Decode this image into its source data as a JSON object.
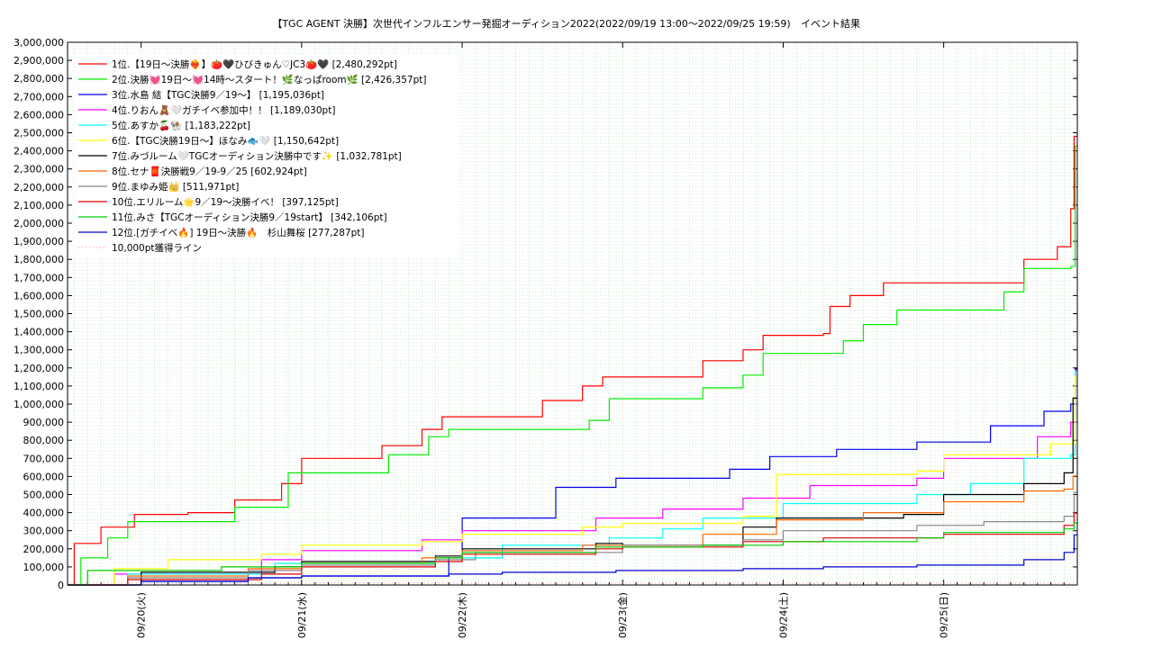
{
  "chart_data": {
    "type": "line",
    "title": "【TGC AGENT 決勝】次世代インフルエンサー発掘オーディション2022(2022/09/19 13:00〜2022/09/25 19:59)",
    "subtitle": "イベント結果",
    "ylim": [
      0,
      3000000
    ],
    "y_ticks": [
      "0",
      "100,000",
      "200,000",
      "300,000",
      "400,000",
      "500,000",
      "600,000",
      "700,000",
      "800,000",
      "900,000",
      "1,000,000",
      "1,100,000",
      "1,200,000",
      "1,300,000",
      "1,400,000",
      "1,500,000",
      "1,600,000",
      "1,700,000",
      "1,800,000",
      "1,900,000",
      "2,000,000",
      "2,100,000",
      "2,200,000",
      "2,300,000",
      "2,400,000",
      "2,500,000",
      "2,600,000",
      "2,700,000",
      "2,800,000",
      "2,900,000",
      "3,000,000"
    ],
    "xlim": [
      "2022-09-19 13:00",
      "2022-09-25 19:59"
    ],
    "x_ticks": [
      "09/20(火)",
      "09/21(水)",
      "09/22(木)",
      "09/23(金)",
      "09/24(土)",
      "09/25(日)"
    ],
    "grid": true,
    "legend_position": "top-left",
    "series": [
      {
        "name": "1位.【19日〜決勝❤️‍🔥】🍅🖤ひびきゅん♡JC3🍅🖤 [2,480,292pt]",
        "color": "#ff0000",
        "points": [
          [
            "2022-09-19 13:00",
            0
          ],
          [
            "2022-09-19 14:00",
            230000
          ],
          [
            "2022-09-19 18:00",
            320000
          ],
          [
            "2022-09-19 23:00",
            390000
          ],
          [
            "2022-09-20 07:00",
            400000
          ],
          [
            "2022-09-20 14:00",
            470000
          ],
          [
            "2022-09-20 21:00",
            560000
          ],
          [
            "2022-09-21 00:00",
            700000
          ],
          [
            "2022-09-21 12:00",
            770000
          ],
          [
            "2022-09-21 18:00",
            860000
          ],
          [
            "2022-09-21 21:00",
            930000
          ],
          [
            "2022-09-22 12:00",
            1020000
          ],
          [
            "2022-09-22 18:00",
            1100000
          ],
          [
            "2022-09-22 21:00",
            1150000
          ],
          [
            "2022-09-23 12:00",
            1240000
          ],
          [
            "2022-09-23 18:00",
            1300000
          ],
          [
            "2022-09-23 21:00",
            1380000
          ],
          [
            "2022-09-24 06:00",
            1390000
          ],
          [
            "2022-09-24 07:00",
            1540000
          ],
          [
            "2022-09-24 10:00",
            1600000
          ],
          [
            "2022-09-24 15:00",
            1670000
          ],
          [
            "2022-09-25 12:00",
            1800000
          ],
          [
            "2022-09-25 17:00",
            1870000
          ],
          [
            "2022-09-25 19:00",
            2080000
          ],
          [
            "2022-09-25 19:30",
            2480292
          ]
        ]
      },
      {
        "name": "2位.決勝💓19日〜💓14時〜スタート！🌿なっぱroom🌿 [2,426,357pt]",
        "color": "#00ee00",
        "points": [
          [
            "2022-09-19 13:00",
            0
          ],
          [
            "2022-09-19 15:00",
            150000
          ],
          [
            "2022-09-19 19:00",
            260000
          ],
          [
            "2022-09-19 22:00",
            350000
          ],
          [
            "2022-09-20 14:00",
            430000
          ],
          [
            "2022-09-20 22:00",
            620000
          ],
          [
            "2022-09-21 13:00",
            720000
          ],
          [
            "2022-09-21 19:00",
            820000
          ],
          [
            "2022-09-21 22:00",
            860000
          ],
          [
            "2022-09-22 19:00",
            910000
          ],
          [
            "2022-09-22 22:00",
            1030000
          ],
          [
            "2022-09-23 12:00",
            1090000
          ],
          [
            "2022-09-23 18:00",
            1160000
          ],
          [
            "2022-09-23 21:00",
            1280000
          ],
          [
            "2022-09-24 09:00",
            1350000
          ],
          [
            "2022-09-24 12:00",
            1440000
          ],
          [
            "2022-09-24 17:00",
            1520000
          ],
          [
            "2022-09-25 09:00",
            1620000
          ],
          [
            "2022-09-25 12:00",
            1750000
          ],
          [
            "2022-09-25 19:00",
            1760000
          ],
          [
            "2022-09-25 19:40",
            2426357
          ]
        ]
      },
      {
        "name": "3位.水島 結【TGC決勝9／19〜】 [1,195,036pt]",
        "color": "#0000ee",
        "points": [
          [
            "2022-09-19 13:00",
            0
          ],
          [
            "2022-09-20 00:00",
            20000
          ],
          [
            "2022-09-20 16:00",
            40000
          ],
          [
            "2022-09-21 00:00",
            50000
          ],
          [
            "2022-09-21 22:00",
            150000
          ],
          [
            "2022-09-22 00:00",
            370000
          ],
          [
            "2022-09-22 14:00",
            540000
          ],
          [
            "2022-09-22 23:00",
            590000
          ],
          [
            "2022-09-23 16:00",
            640000
          ],
          [
            "2022-09-23 22:00",
            710000
          ],
          [
            "2022-09-24 08:00",
            750000
          ],
          [
            "2022-09-24 20:00",
            790000
          ],
          [
            "2022-09-25 07:00",
            880000
          ],
          [
            "2022-09-25 15:00",
            960000
          ],
          [
            "2022-09-25 19:00",
            1000000
          ],
          [
            "2022-09-25 19:40",
            1195036
          ]
        ]
      },
      {
        "name": "4位.りおん🧸🤍ガチイベ参加中！！ [1,189,030pt]",
        "color": "#ff00ff",
        "points": [
          [
            "2022-09-19 13:00",
            0
          ],
          [
            "2022-09-19 20:00",
            60000
          ],
          [
            "2022-09-20 18:00",
            140000
          ],
          [
            "2022-09-21 00:00",
            190000
          ],
          [
            "2022-09-21 18:00",
            250000
          ],
          [
            "2022-09-22 00:00",
            300000
          ],
          [
            "2022-09-22 20:00",
            370000
          ],
          [
            "2022-09-23 06:00",
            420000
          ],
          [
            "2022-09-23 18:00",
            480000
          ],
          [
            "2022-09-24 04:00",
            550000
          ],
          [
            "2022-09-24 20:00",
            590000
          ],
          [
            "2022-09-25 00:00",
            700000
          ],
          [
            "2022-09-25 14:00",
            820000
          ],
          [
            "2022-09-25 19:00",
            900000
          ],
          [
            "2022-09-25 19:40",
            1189030
          ]
        ]
      },
      {
        "name": "5位.あすか🍒🐏 [1,183,222pt]",
        "color": "#00ffff",
        "points": [
          [
            "2022-09-19 13:00",
            0
          ],
          [
            "2022-09-19 22:00",
            60000
          ],
          [
            "2022-09-20 20:00",
            120000
          ],
          [
            "2022-09-21 20:00",
            150000
          ],
          [
            "2022-09-22 06:00",
            220000
          ],
          [
            "2022-09-22 22:00",
            260000
          ],
          [
            "2022-09-23 06:00",
            310000
          ],
          [
            "2022-09-23 12:00",
            370000
          ],
          [
            "2022-09-24 00:00",
            450000
          ],
          [
            "2022-09-24 20:00",
            500000
          ],
          [
            "2022-09-25 04:00",
            560000
          ],
          [
            "2022-09-25 12:00",
            700000
          ],
          [
            "2022-09-25 19:00",
            720000
          ],
          [
            "2022-09-25 19:40",
            1183222
          ]
        ]
      },
      {
        "name": "6位.【TGC決勝19日〜】ほなみ🐟🤍 [1,150,642pt]",
        "color": "#ffff00",
        "points": [
          [
            "2022-09-19 13:00",
            0
          ],
          [
            "2022-09-19 20:00",
            90000
          ],
          [
            "2022-09-20 04:00",
            140000
          ],
          [
            "2022-09-20 18:00",
            170000
          ],
          [
            "2022-09-21 00:00",
            220000
          ],
          [
            "2022-09-21 18:00",
            240000
          ],
          [
            "2022-09-22 00:00",
            280000
          ],
          [
            "2022-09-22 18:00",
            320000
          ],
          [
            "2022-09-23 00:00",
            340000
          ],
          [
            "2022-09-23 18:00",
            380000
          ],
          [
            "2022-09-23 23:00",
            610000
          ],
          [
            "2022-09-24 20:00",
            630000
          ],
          [
            "2022-09-25 00:00",
            720000
          ],
          [
            "2022-09-25 16:00",
            780000
          ],
          [
            "2022-09-25 19:40",
            1150642
          ]
        ]
      },
      {
        "name": "7位.みづルーム🤍TGCオーディション決勝中です✨ [1,032,781pt]",
        "color": "#000000",
        "points": [
          [
            "2022-09-19 13:00",
            0
          ],
          [
            "2022-09-20 00:00",
            70000
          ],
          [
            "2022-09-20 20:00",
            100000
          ],
          [
            "2022-09-21 00:00",
            130000
          ],
          [
            "2022-09-21 20:00",
            160000
          ],
          [
            "2022-09-22 00:00",
            200000
          ],
          [
            "2022-09-22 20:00",
            230000
          ],
          [
            "2022-09-23 00:00",
            220000
          ],
          [
            "2022-09-23 18:00",
            320000
          ],
          [
            "2022-09-23 23:00",
            370000
          ],
          [
            "2022-09-24 18:00",
            390000
          ],
          [
            "2022-09-25 00:00",
            500000
          ],
          [
            "2022-09-25 12:00",
            560000
          ],
          [
            "2022-09-25 18:00",
            620000
          ],
          [
            "2022-09-25 19:20",
            1032781
          ]
        ]
      },
      {
        "name": "8位.セナ🧧決勝戦9／19-9／25 [602,924pt]",
        "color": "#ff6600",
        "points": [
          [
            "2022-09-19 13:00",
            0
          ],
          [
            "2022-09-19 22:00",
            50000
          ],
          [
            "2022-09-20 16:00",
            90000
          ],
          [
            "2022-09-21 00:00",
            120000
          ],
          [
            "2022-09-21 18:00",
            150000
          ],
          [
            "2022-09-22 00:00",
            190000
          ],
          [
            "2022-09-22 18:00",
            220000
          ],
          [
            "2022-09-23 00:00",
            220000
          ],
          [
            "2022-09-23 12:00",
            280000
          ],
          [
            "2022-09-23 23:00",
            360000
          ],
          [
            "2022-09-24 12:00",
            400000
          ],
          [
            "2022-09-25 00:00",
            460000
          ],
          [
            "2022-09-25 12:00",
            520000
          ],
          [
            "2022-09-25 18:00",
            530000
          ],
          [
            "2022-09-25 19:20",
            602924
          ]
        ]
      },
      {
        "name": "9位.まゆみ姫👑 [511,971pt]",
        "color": "#888888",
        "points": [
          [
            "2022-09-19 13:00",
            0
          ],
          [
            "2022-09-19 22:00",
            40000
          ],
          [
            "2022-09-20 16:00",
            80000
          ],
          [
            "2022-09-21 00:00",
            110000
          ],
          [
            "2022-09-21 20:00",
            140000
          ],
          [
            "2022-09-22 02:00",
            180000
          ],
          [
            "2022-09-23 00:00",
            220000
          ],
          [
            "2022-09-23 18:00",
            250000
          ],
          [
            "2022-09-24 00:00",
            300000
          ],
          [
            "2022-09-24 20:00",
            330000
          ],
          [
            "2022-09-25 06:00",
            350000
          ],
          [
            "2022-09-25 18:00",
            380000
          ],
          [
            "2022-09-25 19:30",
            511971
          ]
        ]
      },
      {
        "name": "10位.エリルーム🌟9／19〜決勝イベ！ [397,125pt]",
        "color": "#dd0000",
        "points": [
          [
            "2022-09-19 13:00",
            0
          ],
          [
            "2022-09-19 22:00",
            30000
          ],
          [
            "2022-09-20 18:00",
            60000
          ],
          [
            "2022-09-21 00:00",
            100000
          ],
          [
            "2022-09-21 20:00",
            130000
          ],
          [
            "2022-09-22 00:00",
            170000
          ],
          [
            "2022-09-22 20:00",
            200000
          ],
          [
            "2022-09-23 00:00",
            210000
          ],
          [
            "2022-09-23 18:00",
            240000
          ],
          [
            "2022-09-24 06:00",
            260000
          ],
          [
            "2022-09-25 00:00",
            280000
          ],
          [
            "2022-09-25 18:00",
            330000
          ],
          [
            "2022-09-25 19:30",
            397125
          ]
        ]
      },
      {
        "name": "11位.みさ【TGCオーディション決勝9／19start】 [342,106pt]",
        "color": "#00cc00",
        "points": [
          [
            "2022-09-19 13:00",
            0
          ],
          [
            "2022-09-19 16:00",
            80000
          ],
          [
            "2022-09-20 12:00",
            100000
          ],
          [
            "2022-09-21 00:00",
            120000
          ],
          [
            "2022-09-21 20:00",
            150000
          ],
          [
            "2022-09-22 00:00",
            180000
          ],
          [
            "2022-09-22 20:00",
            210000
          ],
          [
            "2022-09-23 12:00",
            220000
          ],
          [
            "2022-09-24 00:00",
            240000
          ],
          [
            "2022-09-24 20:00",
            260000
          ],
          [
            "2022-09-25 00:00",
            290000
          ],
          [
            "2022-09-25 18:00",
            310000
          ],
          [
            "2022-09-25 19:30",
            342106
          ]
        ]
      },
      {
        "name": "12位.[ガチイベ🔥] 19日〜決勝🔥　杉山舞桜 [277,287pt]",
        "color": "#0000cc",
        "points": [
          [
            "2022-09-19 13:00",
            0
          ],
          [
            "2022-09-20 00:00",
            20000
          ],
          [
            "2022-09-20 16:00",
            40000
          ],
          [
            "2022-09-21 00:00",
            50000
          ],
          [
            "2022-09-21 22:00",
            60000
          ],
          [
            "2022-09-22 06:00",
            70000
          ],
          [
            "2022-09-22 23:00",
            80000
          ],
          [
            "2022-09-23 18:00",
            90000
          ],
          [
            "2022-09-24 06:00",
            100000
          ],
          [
            "2022-09-24 20:00",
            110000
          ],
          [
            "2022-09-25 12:00",
            140000
          ],
          [
            "2022-09-25 18:00",
            180000
          ],
          [
            "2022-09-25 19:30",
            277287
          ]
        ]
      }
    ],
    "reference_lines": [
      {
        "name": "10,000pt獲得ライン",
        "color": "#ff9999",
        "value": 10000,
        "style": "dotted"
      }
    ]
  }
}
